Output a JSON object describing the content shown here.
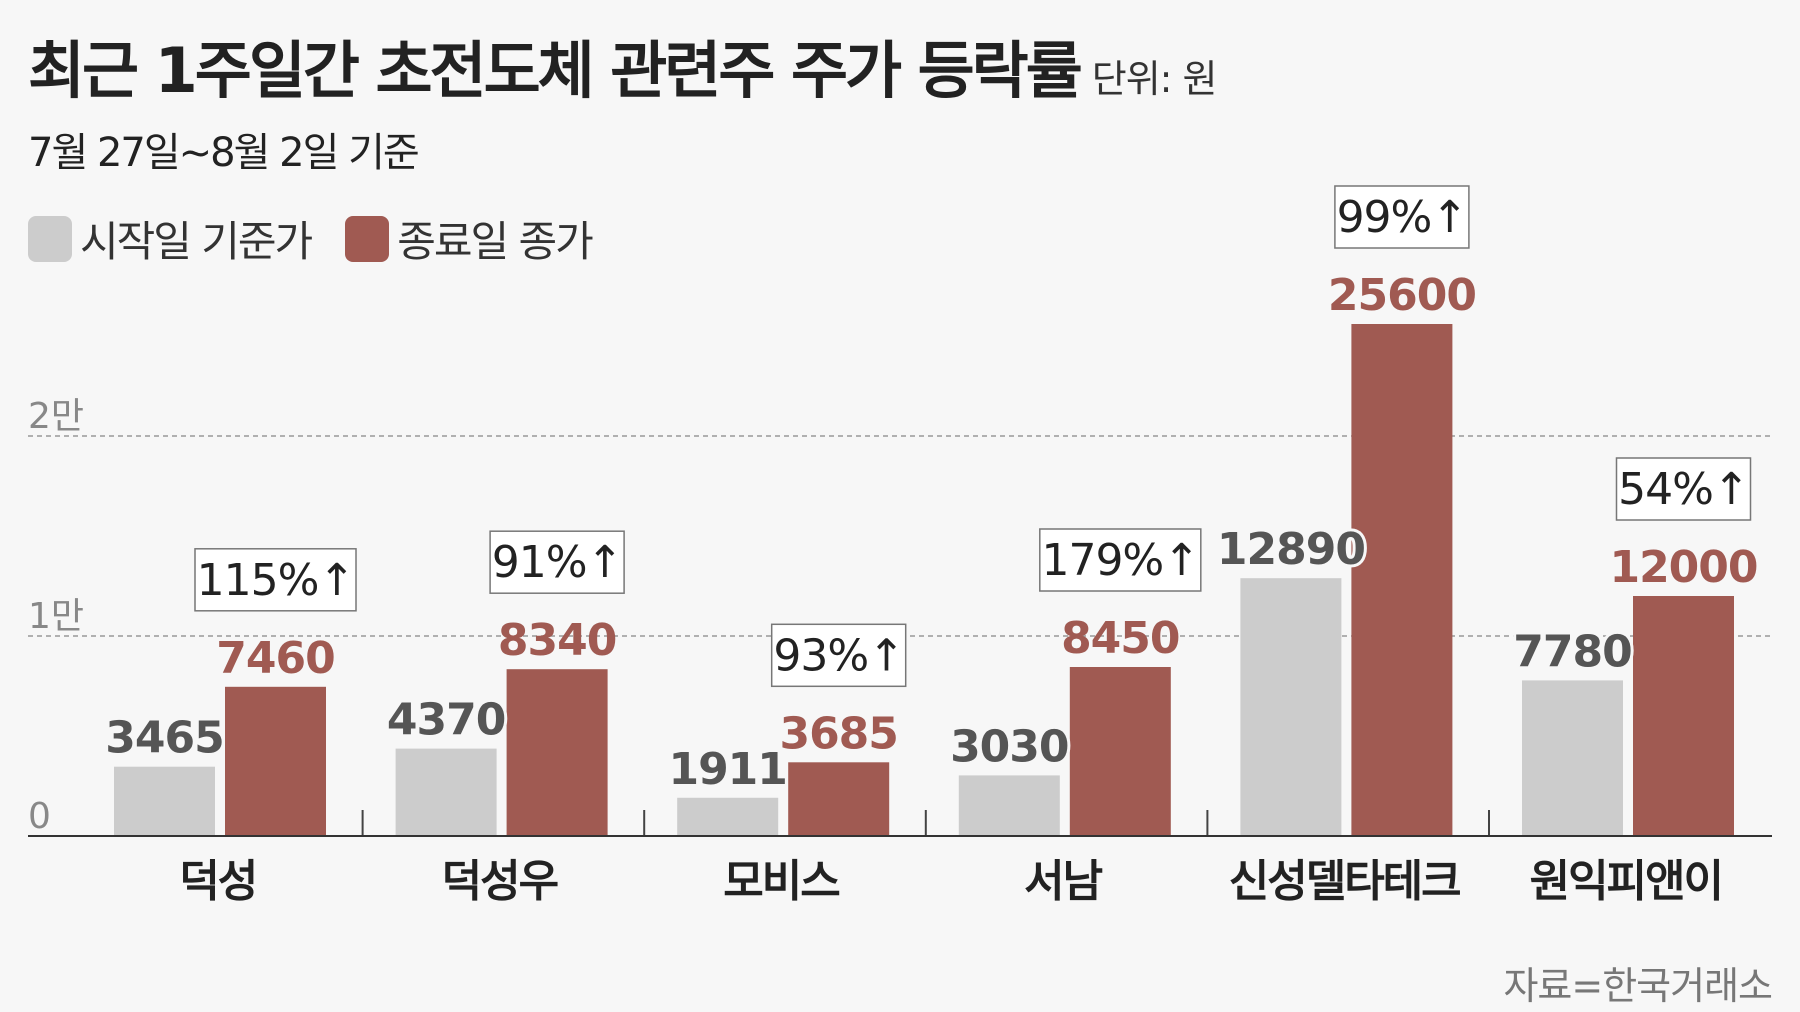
{
  "title": "최근 1주일간 초전도체 관련주 주가 등락률",
  "unit": "단위: 원",
  "subtitle": "7월 27일~8월 2일 기준",
  "source": "자료=한국거래소",
  "colors": {
    "start": "#cccccc",
    "end": "#a05a52",
    "background": "#f7f7f7"
  },
  "chart_data": {
    "type": "bar",
    "categories": [
      "덕성",
      "덕성우",
      "모비스",
      "서남",
      "신성델타테크",
      "원익피앤이"
    ],
    "series": [
      {
        "name": "시작일 기준가",
        "values": [
          3465,
          4370,
          1911,
          3030,
          12890,
          7780
        ]
      },
      {
        "name": "종료일 종가",
        "values": [
          7460,
          8340,
          3685,
          8450,
          25600,
          12000
        ]
      }
    ],
    "change_labels": [
      "115%↑",
      "91%↑",
      "93%↑",
      "179%↑",
      "99%↑",
      "54%↑"
    ],
    "y_ticks": [
      {
        "value": 0,
        "label": "0"
      },
      {
        "value": 10000,
        "label": "1만"
      },
      {
        "value": 20000,
        "label": "2만"
      }
    ],
    "ylim": [
      0,
      27000
    ],
    "grid": "dashed horizontal",
    "legend": "top-left"
  }
}
